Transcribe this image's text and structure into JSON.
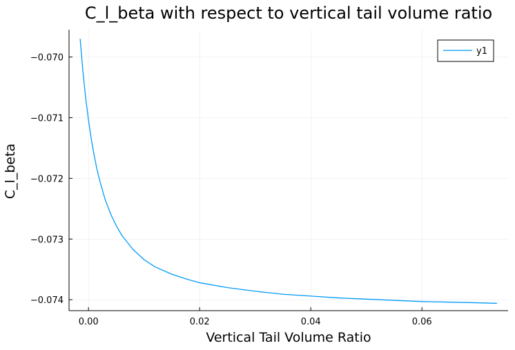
{
  "chart_data": {
    "type": "line",
    "title": "C_l_beta with respect to vertical tail volume ratio",
    "xlabel": "Vertical Tail Volume Ratio",
    "ylabel": "C_l_beta",
    "xlim": [
      -0.0035,
      0.0755
    ],
    "ylim": [
      -0.07418,
      -0.06955
    ],
    "xticks": [
      0.0,
      0.02,
      0.04,
      0.06
    ],
    "xtick_labels": [
      "0.00",
      "0.02",
      "0.04",
      "0.06"
    ],
    "yticks": [
      -0.074,
      -0.073,
      -0.072,
      -0.071,
      -0.07
    ],
    "ytick_labels": [
      "−0.074",
      "−0.073",
      "−0.072",
      "−0.071",
      "−0.070"
    ],
    "grid": true,
    "legend_position": "top-right",
    "series_color": "#009af9",
    "series": [
      {
        "name": "y1",
        "x": [
          -0.0015,
          -0.001,
          -0.0005,
          0.0,
          0.0005,
          0.001,
          0.0015,
          0.002,
          0.003,
          0.004,
          0.005,
          0.006,
          0.008,
          0.01,
          0.012,
          0.015,
          0.018,
          0.02,
          0.025,
          0.03,
          0.035,
          0.04,
          0.045,
          0.05,
          0.055,
          0.06,
          0.065,
          0.07,
          0.0735
        ],
        "y": [
          -0.0697,
          -0.07024,
          -0.07068,
          -0.07104,
          -0.07135,
          -0.07161,
          -0.07184,
          -0.07203,
          -0.07235,
          -0.07259,
          -0.07278,
          -0.07294,
          -0.07317,
          -0.07334,
          -0.07346,
          -0.07358,
          -0.07367,
          -0.07372,
          -0.0738,
          -0.07386,
          -0.07391,
          -0.07394,
          -0.07397,
          -0.07399,
          -0.07401,
          -0.07403,
          -0.07404,
          -0.07405,
          -0.07406
        ]
      }
    ]
  }
}
